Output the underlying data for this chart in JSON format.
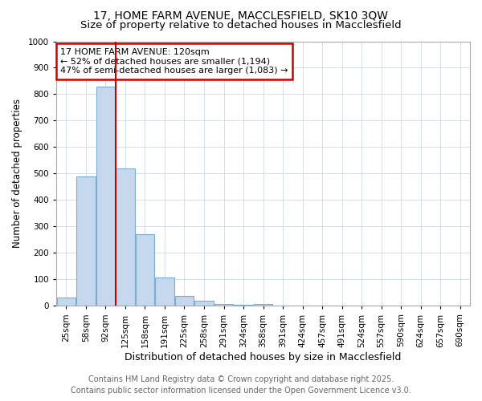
{
  "title": "17, HOME FARM AVENUE, MACCLESFIELD, SK10 3QW",
  "subtitle": "Size of property relative to detached houses in Macclesfield",
  "xlabel": "Distribution of detached houses by size in Macclesfield",
  "ylabel": "Number of detached properties",
  "categories": [
    "25sqm",
    "58sqm",
    "92sqm",
    "125sqm",
    "158sqm",
    "191sqm",
    "225sqm",
    "258sqm",
    "291sqm",
    "324sqm",
    "358sqm",
    "391sqm",
    "424sqm",
    "457sqm",
    "491sqm",
    "524sqm",
    "557sqm",
    "590sqm",
    "624sqm",
    "657sqm",
    "690sqm"
  ],
  "values": [
    32,
    490,
    830,
    520,
    270,
    107,
    38,
    20,
    8,
    5,
    6,
    0,
    0,
    0,
    0,
    0,
    0,
    0,
    0,
    0,
    0
  ],
  "bar_color": "#c5d8ee",
  "bar_edge_color": "#7aadd4",
  "vline_color": "#cc0000",
  "annotation_line1": "17 HOME FARM AVENUE: 120sqm",
  "annotation_line2": "← 52% of detached houses are smaller (1,194)",
  "annotation_line3": "47% of semi-detached houses are larger (1,083) →",
  "annotation_box_color": "#cc0000",
  "ylim": [
    0,
    1000
  ],
  "yticks": [
    0,
    100,
    200,
    300,
    400,
    500,
    600,
    700,
    800,
    900,
    1000
  ],
  "bg_color": "#ffffff",
  "plot_bg_color": "#ffffff",
  "grid_color": "#d0d8e8",
  "footer_line1": "Contains HM Land Registry data © Crown copyright and database right 2025.",
  "footer_line2": "Contains public sector information licensed under the Open Government Licence v3.0.",
  "title_fontsize": 10,
  "subtitle_fontsize": 9.5,
  "xlabel_fontsize": 9,
  "ylabel_fontsize": 8.5,
  "tick_fontsize": 7.5,
  "annotation_fontsize": 8,
  "footer_fontsize": 7
}
